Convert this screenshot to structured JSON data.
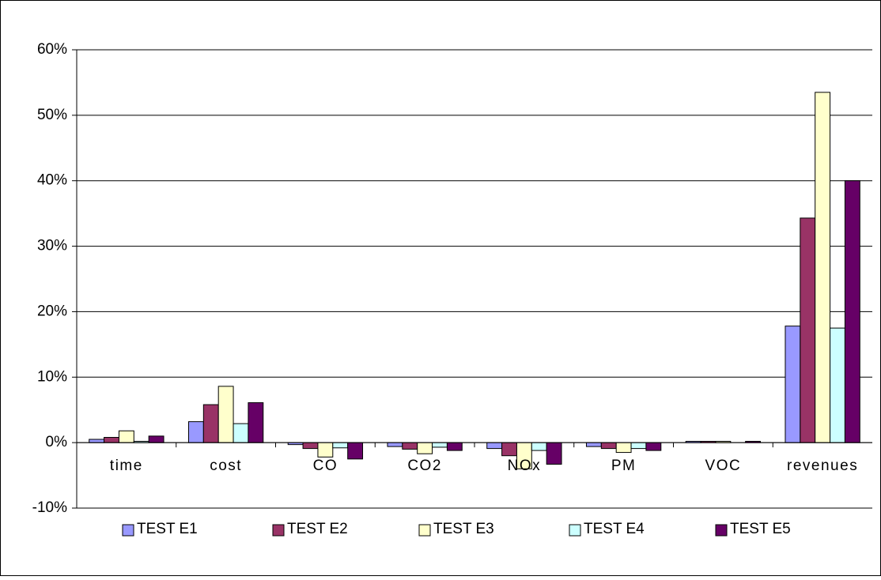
{
  "chart_data": {
    "type": "bar",
    "categories": [
      "time",
      "cost",
      "CO",
      "CO2",
      "NOx",
      "PM",
      "VOC",
      "revenues"
    ],
    "series": [
      {
        "name": "TEST E1",
        "color": "#9999ff",
        "values": [
          0.5,
          3.2,
          -0.3,
          -0.6,
          -0.9,
          -0.6,
          0.2,
          17.8
        ]
      },
      {
        "name": "TEST E2",
        "color": "#993366",
        "values": [
          0.8,
          5.8,
          -0.9,
          -1.0,
          -2.0,
          -0.9,
          0.2,
          34.3
        ]
      },
      {
        "name": "TEST E3",
        "color": "#ffffcc",
        "values": [
          1.8,
          8.6,
          -2.2,
          -1.7,
          -4.0,
          -1.5,
          0.2,
          53.5
        ]
      },
      {
        "name": "TEST E4",
        "color": "#ccffff",
        "values": [
          0.2,
          2.9,
          -0.8,
          -0.7,
          -1.2,
          -0.9,
          0.0,
          17.5
        ]
      },
      {
        "name": "TEST E5",
        "color": "#660066",
        "values": [
          1.0,
          6.1,
          -2.5,
          -1.2,
          -3.3,
          -1.2,
          0.2,
          40.0
        ]
      }
    ],
    "ylim": [
      -10,
      60
    ],
    "yticks": [
      {
        "value": -10,
        "label": "-10%"
      },
      {
        "value": 0,
        "label": "0%"
      },
      {
        "value": 10,
        "label": "10%"
      },
      {
        "value": 20,
        "label": "20%"
      },
      {
        "value": 30,
        "label": "30%"
      },
      {
        "value": 40,
        "label": "40%"
      },
      {
        "value": 50,
        "label": "50%"
      },
      {
        "value": 60,
        "label": "60%"
      }
    ],
    "grid": true,
    "legend": "bottom"
  }
}
